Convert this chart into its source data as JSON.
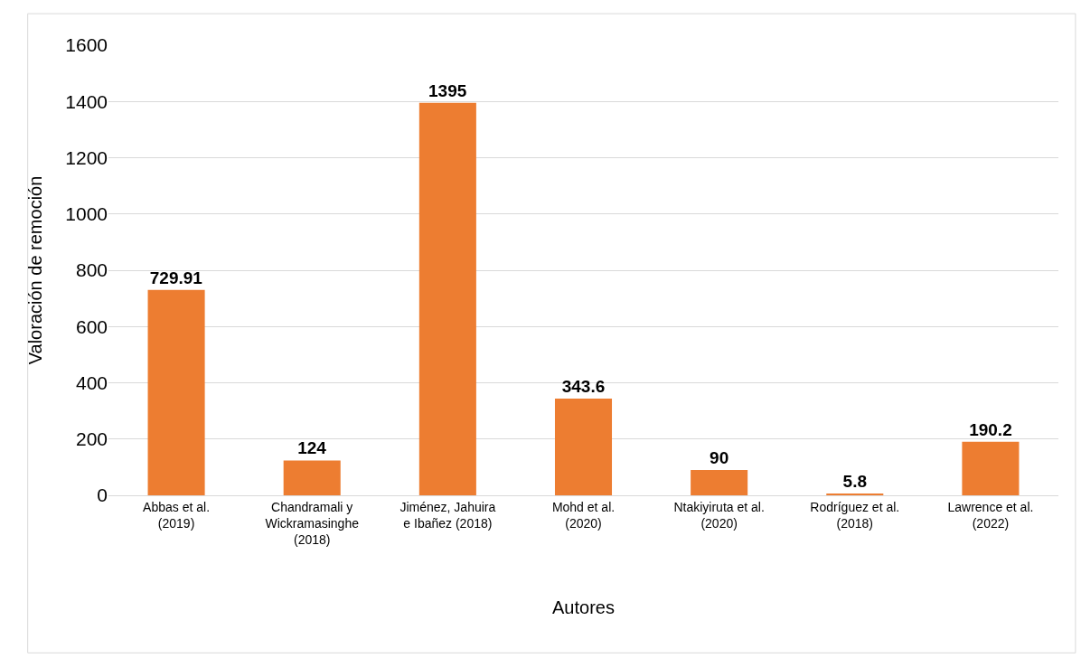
{
  "chart_data": {
    "type": "bar",
    "xlabel": "Autores",
    "ylabel": "Valoración de remoción",
    "categories": [
      "Abbas et al.\n(2019)",
      "Chandramali y\nWickramasinghe\n(2018)",
      "Jiménez, Jahuira\ne Ibañez (2018)",
      "Mohd et al.\n(2020)",
      "Ntakiyiruta et al.\n(2020)",
      "Rodríguez et al.\n(2018)",
      "Lawrence et al.\n(2022)"
    ],
    "values": [
      729.91,
      124,
      1395,
      343.6,
      90,
      5.8,
      190.2
    ],
    "color": "#ed7d31",
    "ylim": [
      0,
      1600
    ],
    "yticks": [
      0,
      200,
      400,
      600,
      800,
      1000,
      1200,
      1400,
      1600
    ],
    "grid": "y",
    "data_labels": true,
    "legend": false
  }
}
